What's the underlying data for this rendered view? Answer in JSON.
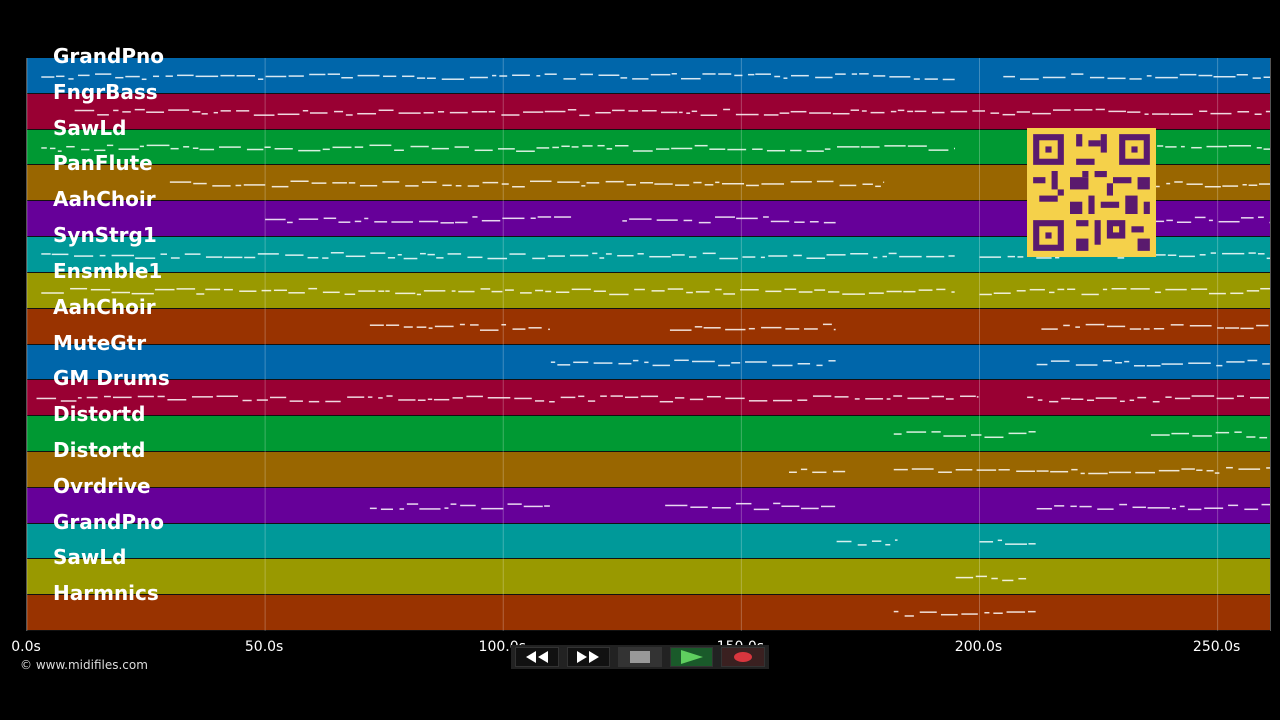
{
  "tracks": [
    {
      "label": "GrandPno",
      "color": "#0066aa"
    },
    {
      "label": "FngrBass",
      "color": "#990033"
    },
    {
      "label": "SawLd",
      "color": "#009933"
    },
    {
      "label": "PanFlute",
      "color": "#996600"
    },
    {
      "label": "AahChoir",
      "color": "#660099"
    },
    {
      "label": "SynStrg1",
      "color": "#009999"
    },
    {
      "label": "Ensmble1",
      "color": "#999900"
    },
    {
      "label": "AahChoir",
      "color": "#993300"
    },
    {
      "label": "MuteGtr",
      "color": "#0066aa"
    },
    {
      "label": "GM Drums",
      "color": "#990033"
    },
    {
      "label": "Distortd",
      "color": "#009933"
    },
    {
      "label": "Distortd",
      "color": "#996600"
    },
    {
      "label": "Ovrdrive",
      "color": "#660099"
    },
    {
      "label": "GrandPno",
      "color": "#009999"
    },
    {
      "label": "SawLd",
      "color": "#999900"
    },
    {
      "label": "Harmnics",
      "color": "#993300"
    }
  ],
  "timeline": {
    "max_seconds": 261,
    "ticks": [
      {
        "value": 0,
        "label": "0.0s"
      },
      {
        "value": 50,
        "label": "50.0s"
      },
      {
        "value": 100,
        "label": "100.0s"
      },
      {
        "value": 150,
        "label": "150.0s"
      },
      {
        "value": 200,
        "label": "200.0s"
      },
      {
        "value": 250,
        "label": "250.0s"
      }
    ]
  },
  "copyright": "© www.midifiles.com",
  "transport": {
    "buttons": [
      {
        "name": "rewind-button",
        "icon": "rewind-icon"
      },
      {
        "name": "fast-forward-button",
        "icon": "fast-forward-icon"
      },
      {
        "name": "stop-button",
        "icon": "stop-icon"
      },
      {
        "name": "play-button",
        "icon": "play-icon"
      },
      {
        "name": "record-button",
        "icon": "record-icon"
      }
    ]
  }
}
